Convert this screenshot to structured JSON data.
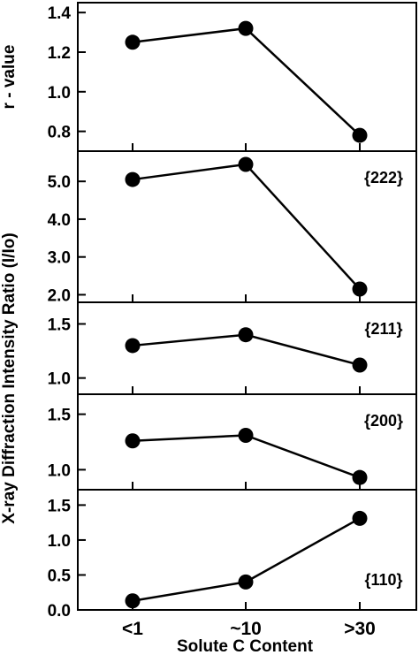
{
  "chart_data": {
    "type": "line",
    "categories": [
      "<1",
      "~10",
      ">30"
    ],
    "xlabel": "Solute C Content",
    "shared_ylabel": "X-ray Diffraction Intensity Ratio (I/Io)",
    "grid": false,
    "colors": {
      "line": "#000000",
      "marker": "#000000",
      "background": "#ffffff"
    },
    "panels": [
      {
        "ylabel": "r - value",
        "annotation": "",
        "values": [
          1.25,
          1.32,
          0.78
        ],
        "ylim": [
          0.7,
          1.45
        ],
        "yticks": [
          0.8,
          1.0,
          1.2,
          1.4
        ],
        "ytick_labels": [
          "0.8",
          "1.0",
          "1.2",
          "1.4"
        ]
      },
      {
        "ylabel": "",
        "annotation": "{222}",
        "values": [
          5.05,
          5.45,
          2.15
        ],
        "ylim": [
          1.8,
          5.8
        ],
        "yticks": [
          2.0,
          3.0,
          4.0,
          5.0
        ],
        "ytick_labels": [
          "2.0",
          "3.0",
          "4.0",
          "5.0"
        ]
      },
      {
        "ylabel": "",
        "annotation": "{211}",
        "values": [
          1.3,
          1.4,
          1.12
        ],
        "ylim": [
          0.85,
          1.7
        ],
        "yticks": [
          1.0,
          1.5
        ],
        "ytick_labels": [
          "1.0",
          "1.5"
        ]
      },
      {
        "ylabel": "",
        "annotation": "{200}",
        "values": [
          1.26,
          1.31,
          0.93
        ],
        "ylim": [
          0.82,
          1.68
        ],
        "yticks": [
          1.0,
          1.5
        ],
        "ytick_labels": [
          "1.0",
          "1.5"
        ]
      },
      {
        "ylabel": "",
        "annotation": "{110}",
        "values": [
          0.13,
          0.4,
          1.31
        ],
        "ylim": [
          0.0,
          1.72
        ],
        "yticks": [
          0.0,
          0.5,
          1.0,
          1.5
        ],
        "ytick_labels": [
          "0.0",
          "0.5",
          "1.0",
          "1.5"
        ]
      }
    ]
  }
}
